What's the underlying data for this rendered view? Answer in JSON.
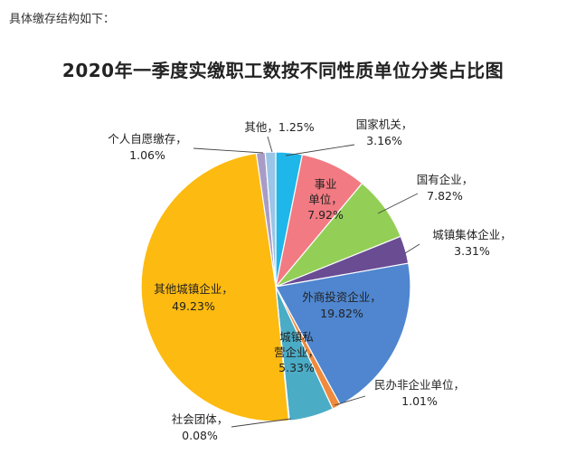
{
  "intro_text": "具体缴存结构如下：",
  "chart_data": {
    "type": "pie",
    "title": "2020年一季度实缴职工数按不同性质单位分类占比图",
    "slices": [
      {
        "name": "国家机关",
        "value": 3.16,
        "label": "3.16%",
        "color": "#1fb6ea"
      },
      {
        "name": "事业单位",
        "value": 7.92,
        "label": "7.92%",
        "color": "#f27a82"
      },
      {
        "name": "国有企业",
        "value": 7.82,
        "label": "7.82%",
        "color": "#93cf56"
      },
      {
        "name": "城镇集体企业",
        "value": 3.31,
        "label": "3.31%",
        "color": "#6a4c93"
      },
      {
        "name": "外商投资企业",
        "value": 19.82,
        "label": "19.82%",
        "color": "#4f86cf"
      },
      {
        "name": "民办非企业单位",
        "value": 1.01,
        "label": "1.01%",
        "color": "#f08a3c"
      },
      {
        "name": "城镇私营企业",
        "value": 5.33,
        "label": "5.33%",
        "color": "#4bacc6"
      },
      {
        "name": "社会团体",
        "value": 0.08,
        "label": "0.08%",
        "color": "#8e8e8e"
      },
      {
        "name": "其他城镇企业",
        "value": 49.23,
        "label": "49.23%",
        "color": "#fdba10"
      },
      {
        "name": "个人自愿缴存",
        "value": 1.06,
        "label": "1.06%",
        "color": "#a89cc7"
      },
      {
        "name": "其他",
        "value": 1.25,
        "label": "1.25%",
        "color": "#9ac5e6"
      }
    ],
    "label_text": {
      "guojia": [
        "国家机关，",
        "3.16%"
      ],
      "shiye": [
        "事业",
        "单位，",
        "7.92%"
      ],
      "guoyou": [
        "国有企业，",
        "7.82%"
      ],
      "jiti": [
        "城镇集体企业，",
        "3.31%"
      ],
      "waishang": [
        "外商投资企业，",
        "19.82%"
      ],
      "minban": [
        "民办非企业单位，",
        "1.01%"
      ],
      "siying": [
        "城镇私",
        "营企业，",
        "5.33%"
      ],
      "shetuan": [
        "社会团体，",
        "0.08%"
      ],
      "qitachengzhen": [
        "其他城镇企业，",
        "49.23%"
      ],
      "geren": [
        "个人自愿缴存，",
        "1.06%"
      ],
      "qita": [
        "其他，1.25%"
      ]
    }
  }
}
